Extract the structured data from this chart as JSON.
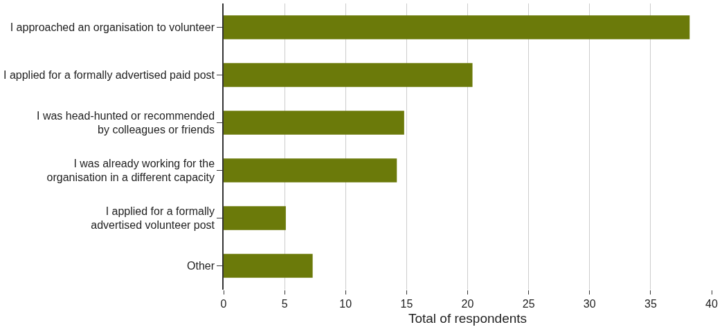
{
  "chart_data": {
    "type": "bar",
    "orientation": "horizontal",
    "xlabel": "Total of respondents",
    "categories": [
      "I approached an organisation to volunteer",
      "I applied for a formally advertised paid post",
      "I was head-hunted or recommended\nby colleagues or friends",
      "I was already working for the\norganisation in a different capacity",
      "I applied for a formally\nadvertised volunteer post",
      "Other"
    ],
    "values": [
      38.2,
      20.4,
      14.8,
      14.2,
      5.1,
      7.3
    ],
    "color": "#6b7a0a",
    "xlim": [
      0,
      40
    ],
    "xticks": [
      0,
      5,
      10,
      15,
      20,
      25,
      30,
      35,
      40
    ],
    "grid": "x"
  }
}
